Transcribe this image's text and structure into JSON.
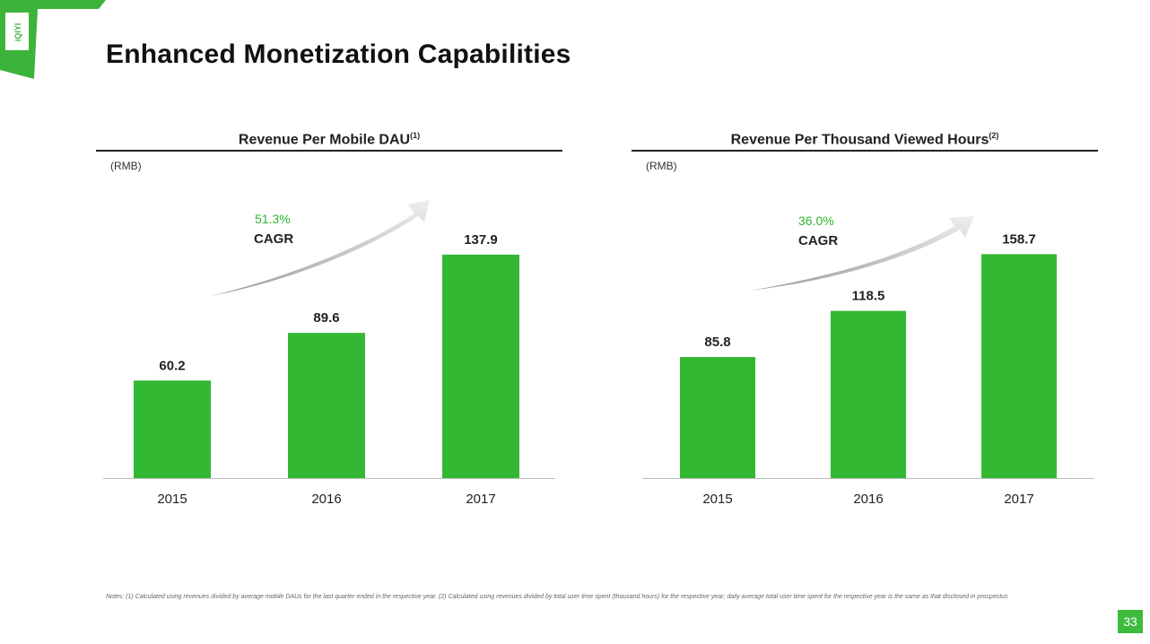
{
  "title": "Enhanced Monetization Capabilities",
  "brand": {
    "logo_text": "iQIYI",
    "color": "#3cb43c",
    "bar_color": "#33b833"
  },
  "chart_data": [
    {
      "type": "bar",
      "title": "Revenue Per Mobile DAU",
      "title_note": "(1)",
      "unit": "(RMB)",
      "categories": [
        "2015",
        "2016",
        "2017"
      ],
      "values": [
        60.2,
        89.6,
        137.9
      ],
      "value_labels": [
        "60.2",
        "89.6",
        "137.9"
      ],
      "cagr_value": "51.3%",
      "cagr_label": "CAGR",
      "ylim": [
        0,
        155
      ]
    },
    {
      "type": "bar",
      "title": "Revenue Per Thousand Viewed Hours",
      "title_note": "(2)",
      "unit": "(RMB)",
      "categories": [
        "2015",
        "2016",
        "2017"
      ],
      "values": [
        85.8,
        118.5,
        158.7
      ],
      "value_labels": [
        "85.8",
        "118.5",
        "158.7"
      ],
      "cagr_value": "36.0%",
      "cagr_label": "CAGR",
      "ylim": [
        0,
        178
      ]
    }
  ],
  "notes": "Notes: (1) Calculated using revenues divided by average mobile DAUs for the last quarter ended in the respective year. (2) Calculated using revenues divided by total user time spent (thousand hours) for the respective year; daily average total user time spent for the respective year is the same as that disclosed in prospectus",
  "page_number": "33"
}
